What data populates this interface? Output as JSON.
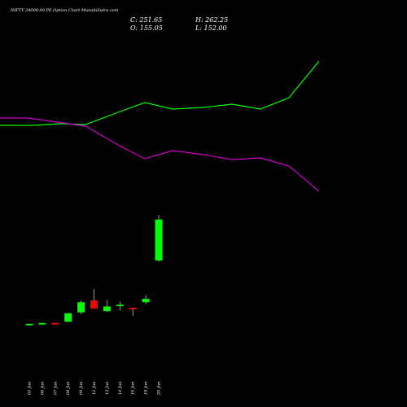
{
  "chart_data": {
    "type": "candlestick",
    "title": "NIFTY 24000.00 PE Option  Chart MunafaSutra.com",
    "ohlc_readout": {
      "close": "C: 251.65",
      "high": "H: 262.25",
      "open": "O: 155.05",
      "low": "L: 152.00"
    },
    "categories": [
      "05 Jun",
      "06 Jun",
      "07 Jun",
      "08 Jun",
      "09 Jun",
      "12 Jun",
      "13 Jun",
      "14 Jun",
      "16 Jun",
      "19 Jun",
      "20 Jun"
    ],
    "candles": [
      {
        "open": 5,
        "high": 7,
        "low": 4,
        "close": 6
      },
      {
        "open": 7,
        "high": 8,
        "low": 7,
        "close": 8
      },
      {
        "open": 8,
        "high": 8,
        "low": 7,
        "close": 6
      },
      {
        "open": 11,
        "high": 31,
        "low": 11,
        "close": 31
      },
      {
        "open": 33,
        "high": 61,
        "low": 29,
        "close": 57
      },
      {
        "open": 61,
        "high": 88,
        "low": 42,
        "close": 42
      },
      {
        "open": 36,
        "high": 62,
        "low": 34,
        "close": 47
      },
      {
        "open": 51,
        "high": 58,
        "low": 38,
        "close": 51
      },
      {
        "open": 44,
        "high": 44,
        "low": 25,
        "close": 40
      },
      {
        "open": 57,
        "high": 73,
        "low": 53,
        "close": 65
      },
      {
        "open": 155.05,
        "high": 262.25,
        "low": 152.0,
        "close": 251.65
      }
    ],
    "overlay_lines": [
      {
        "color": "#00ff00",
        "points": [
          [
            0,
            154
          ],
          [
            40,
            154
          ],
          [
            75,
            152
          ],
          [
            105,
            153
          ],
          [
            145,
            138
          ],
          [
            178,
            126
          ],
          [
            212,
            134
          ],
          [
            250,
            132
          ],
          [
            285,
            128
          ],
          [
            320,
            134
          ],
          [
            355,
            120
          ],
          [
            392,
            75
          ]
        ]
      },
      {
        "color": "#cc00cc",
        "points": [
          [
            0,
            145
          ],
          [
            35,
            145
          ],
          [
            70,
            150
          ],
          [
            105,
            155
          ],
          [
            145,
            178
          ],
          [
            178,
            195
          ],
          [
            212,
            185
          ],
          [
            250,
            190
          ],
          [
            285,
            196
          ],
          [
            320,
            194
          ],
          [
            355,
            204
          ],
          [
            392,
            235
          ]
        ]
      }
    ],
    "colors": {
      "up": "#00ff00",
      "down": "#ff0000",
      "background": "#000000",
      "text": "#ffffff"
    }
  }
}
